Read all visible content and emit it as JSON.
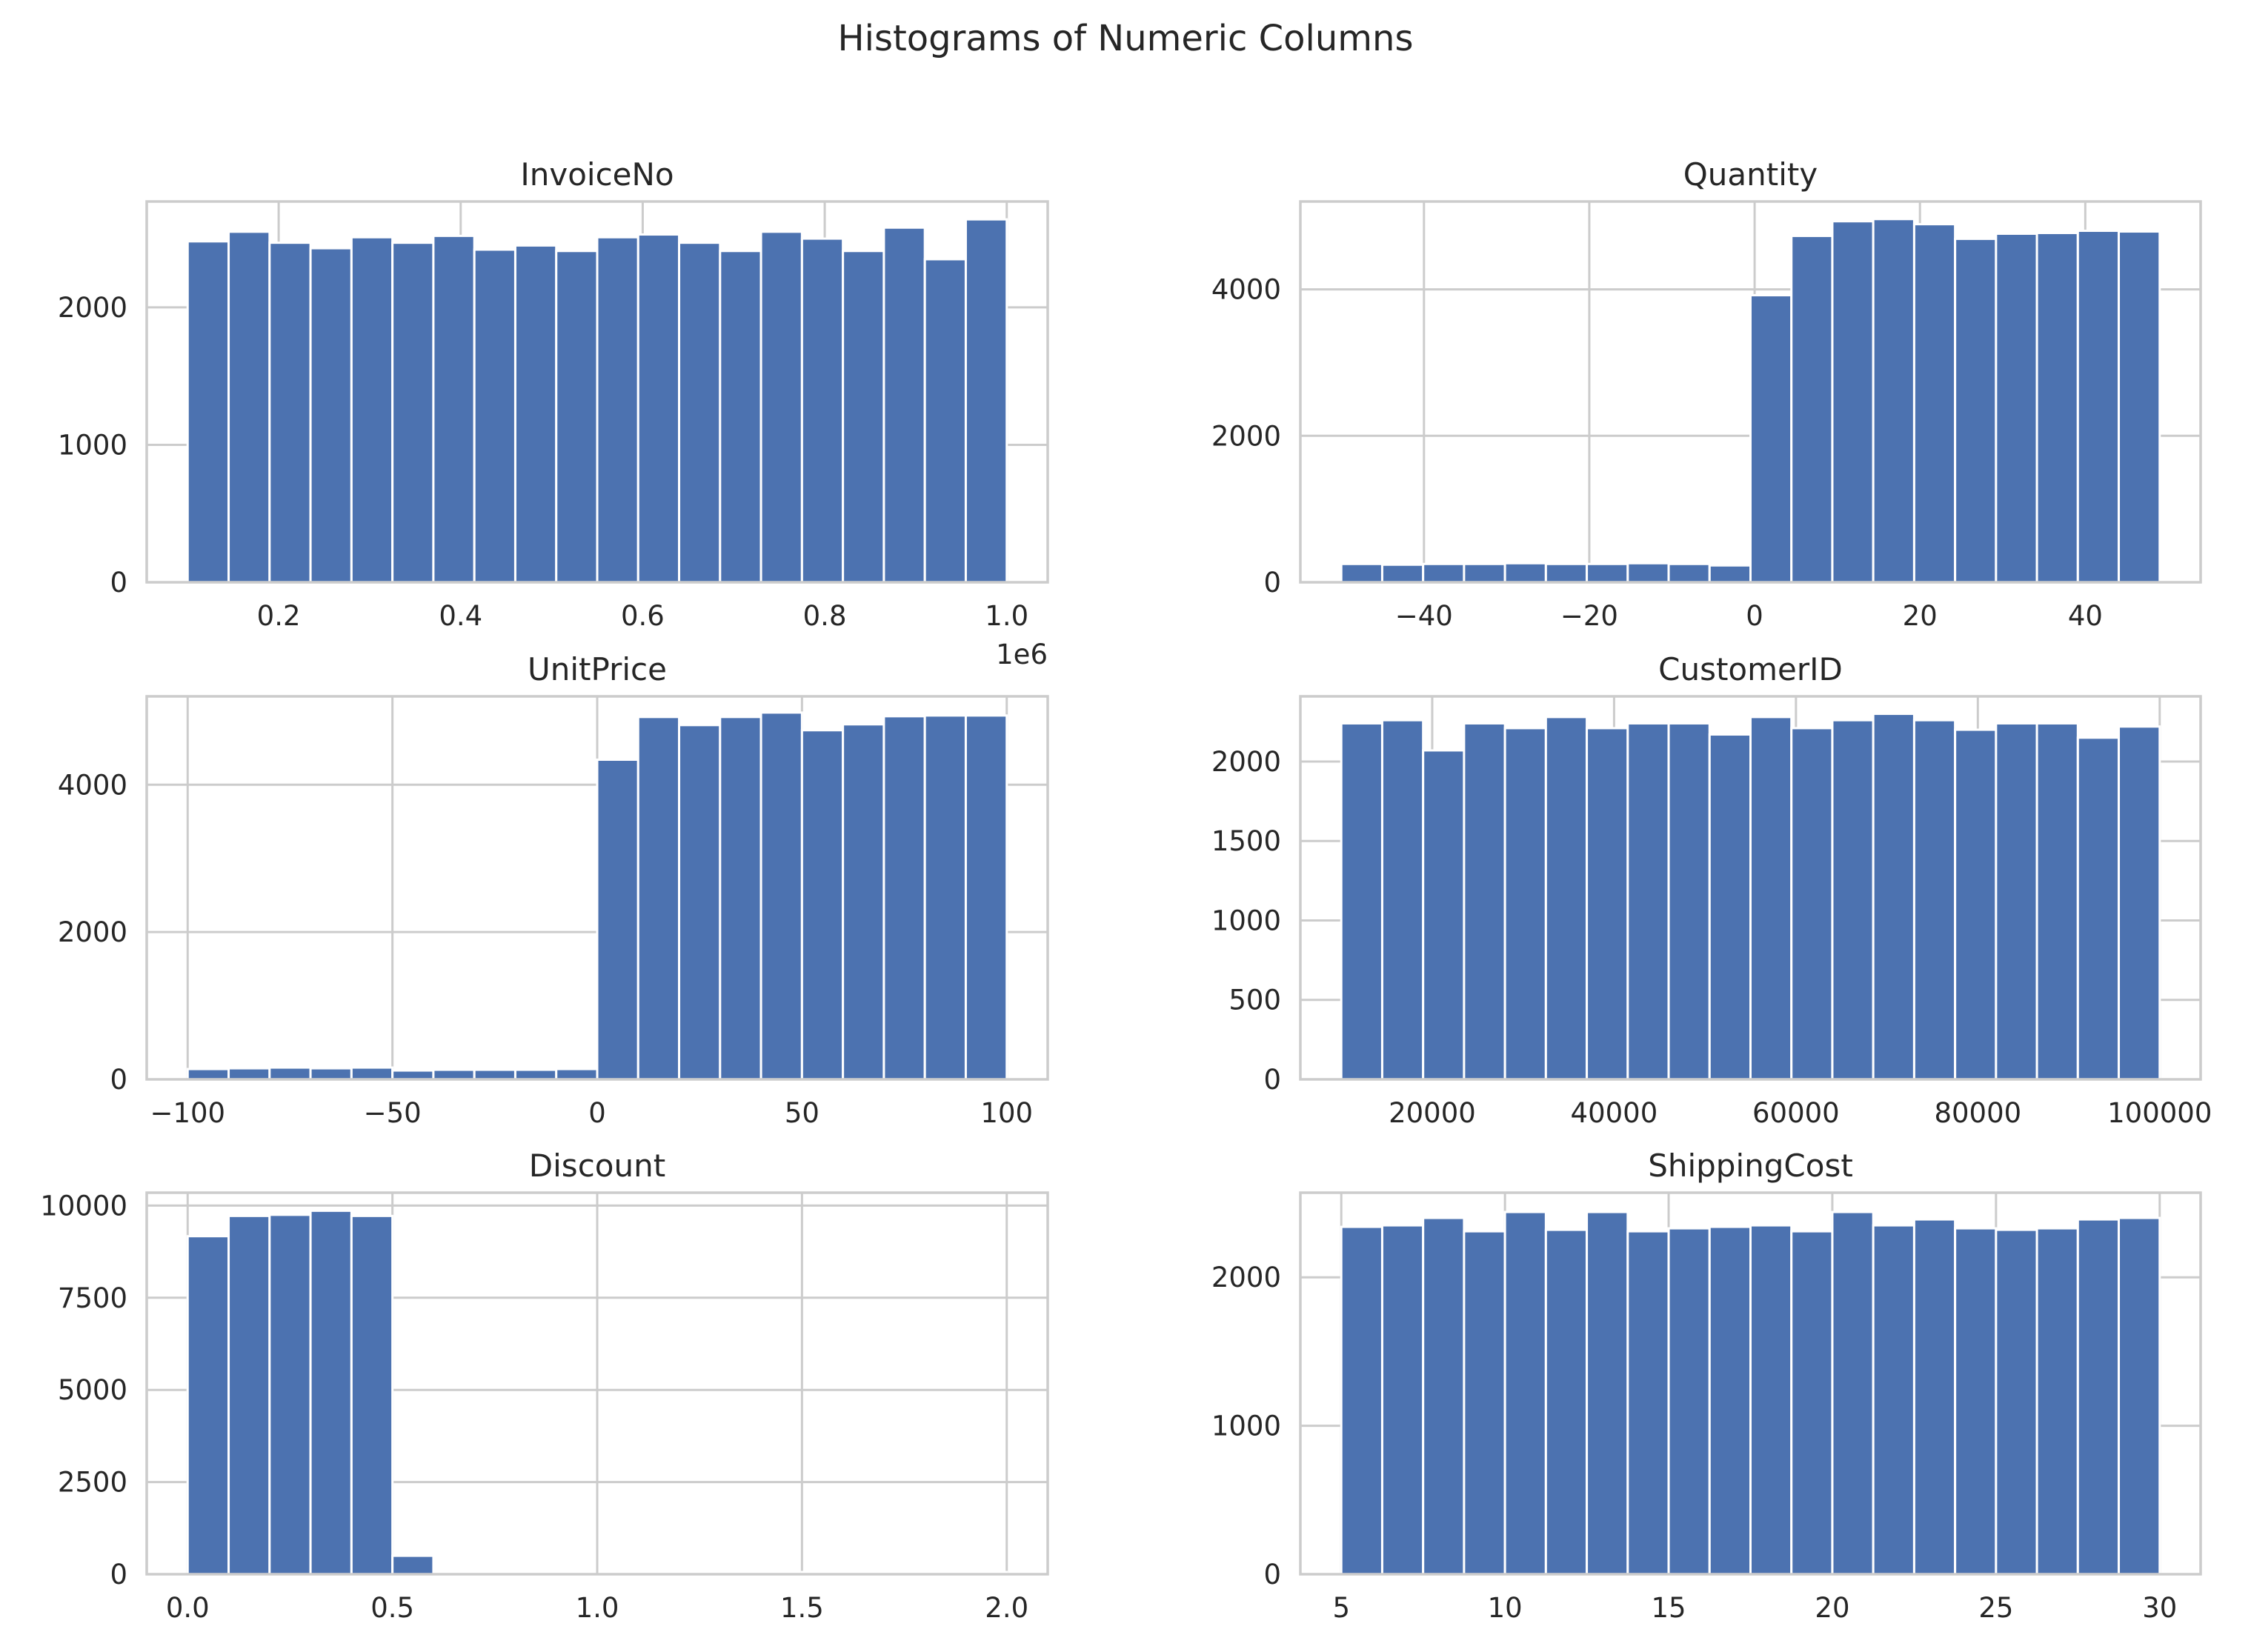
{
  "figure": {
    "title": "Histograms of Numeric Columns",
    "bar_color": "#4c72b0",
    "grid_color": "#cccccc"
  },
  "chart_data": [
    {
      "type": "bar",
      "title": "InvoiceNo",
      "xlabel": "",
      "ylabel": "",
      "x_offset_label": "1e6",
      "bin_range": [
        0.1,
        1.0
      ],
      "xlim": [
        0.055,
        1.045
      ],
      "ylim": [
        0,
        2770
      ],
      "xticks": [
        0.2,
        0.4,
        0.6,
        0.8,
        1.0
      ],
      "xtick_labels": [
        "0.2",
        "0.4",
        "0.6",
        "0.8",
        "1.0"
      ],
      "yticks": [
        0,
        1000,
        2000
      ],
      "ytick_labels": [
        "0",
        "1000",
        "2000"
      ],
      "grid": true,
      "values": [
        2480,
        2550,
        2470,
        2430,
        2510,
        2470,
        2520,
        2420,
        2450,
        2410,
        2510,
        2530,
        2470,
        2410,
        2550,
        2500,
        2410,
        2580,
        2350,
        2640
      ]
    },
    {
      "type": "bar",
      "title": "Quantity",
      "xlabel": "",
      "ylabel": "",
      "bin_range": [
        -50,
        49
      ],
      "xlim": [
        -54.95,
        53.95
      ],
      "ylim": [
        0,
        5200
      ],
      "xticks": [
        -40,
        -20,
        0,
        20,
        40
      ],
      "xtick_labels": [
        "−40",
        "−20",
        "0",
        "20",
        "40"
      ],
      "yticks": [
        0,
        2000,
        4000
      ],
      "ytick_labels": [
        "0",
        "2000",
        "4000"
      ],
      "grid": true,
      "values": [
        250,
        240,
        250,
        250,
        260,
        250,
        250,
        260,
        250,
        230,
        3920,
        4730,
        4930,
        4960,
        4890,
        4690,
        4760,
        4770,
        4800,
        4790
      ]
    },
    {
      "type": "bar",
      "title": "UnitPrice",
      "xlabel": "",
      "ylabel": "",
      "bin_range": [
        -100,
        100
      ],
      "xlim": [
        -110,
        110
      ],
      "ylim": [
        0,
        5200
      ],
      "xticks": [
        -100,
        -50,
        0,
        50,
        100
      ],
      "xtick_labels": [
        "−100",
        "−50",
        "0",
        "50",
        "100"
      ],
      "yticks": [
        0,
        2000,
        4000
      ],
      "ytick_labels": [
        "0",
        "2000",
        "4000"
      ],
      "grid": true,
      "values": [
        140,
        150,
        160,
        150,
        160,
        120,
        130,
        130,
        130,
        140,
        4340,
        4920,
        4810,
        4920,
        4980,
        4740,
        4820,
        4930,
        4940,
        4940
      ]
    },
    {
      "type": "bar",
      "title": "CustomerID",
      "xlabel": "",
      "ylabel": "",
      "bin_range": [
        10000,
        100000
      ],
      "xlim": [
        5500,
        104500
      ],
      "ylim": [
        0,
        2410
      ],
      "xticks": [
        20000,
        40000,
        60000,
        80000,
        100000
      ],
      "xtick_labels": [
        "20000",
        "40000",
        "60000",
        "80000",
        "100000"
      ],
      "yticks": [
        0,
        500,
        1000,
        1500,
        2000
      ],
      "ytick_labels": [
        "0",
        "500",
        "1000",
        "1500",
        "2000"
      ],
      "grid": true,
      "values": [
        2240,
        2260,
        2070,
        2240,
        2210,
        2280,
        2210,
        2240,
        2240,
        2170,
        2280,
        2210,
        2260,
        2300,
        2260,
        2200,
        2240,
        2240,
        2150,
        2220
      ]
    },
    {
      "type": "bar",
      "title": "Discount",
      "xlabel": "",
      "ylabel": "",
      "bin_range": [
        0,
        2
      ],
      "xlim": [
        -0.1,
        2.1
      ],
      "ylim": [
        0,
        10350
      ],
      "xticks": [
        0.0,
        0.5,
        1.0,
        1.5,
        2.0
      ],
      "xtick_labels": [
        "0.0",
        "0.5",
        "1.0",
        "1.5",
        "2.0"
      ],
      "yticks": [
        0,
        2500,
        5000,
        7500,
        10000
      ],
      "ytick_labels": [
        "0",
        "2500",
        "5000",
        "7500",
        "10000"
      ],
      "grid": true,
      "values": [
        9170,
        9720,
        9750,
        9860,
        9720,
        500,
        0,
        0,
        0,
        0,
        0,
        60,
        60,
        60,
        0,
        60,
        0,
        60,
        60,
        60
      ]
    },
    {
      "type": "bar",
      "title": "ShippingCost",
      "xlabel": "",
      "ylabel": "",
      "bin_range": [
        5,
        30
      ],
      "xlim": [
        3.75,
        31.25
      ],
      "ylim": [
        0,
        2570
      ],
      "xticks": [
        5,
        10,
        15,
        20,
        25,
        30
      ],
      "xtick_labels": [
        "5",
        "10",
        "15",
        "20",
        "25",
        "30"
      ],
      "yticks": [
        0,
        1000,
        2000
      ],
      "ytick_labels": [
        "0",
        "1000",
        "2000"
      ],
      "grid": true,
      "values": [
        2340,
        2350,
        2400,
        2310,
        2440,
        2320,
        2440,
        2310,
        2330,
        2340,
        2350,
        2310,
        2440,
        2350,
        2390,
        2330,
        2320,
        2330,
        2390,
        2400
      ]
    }
  ]
}
